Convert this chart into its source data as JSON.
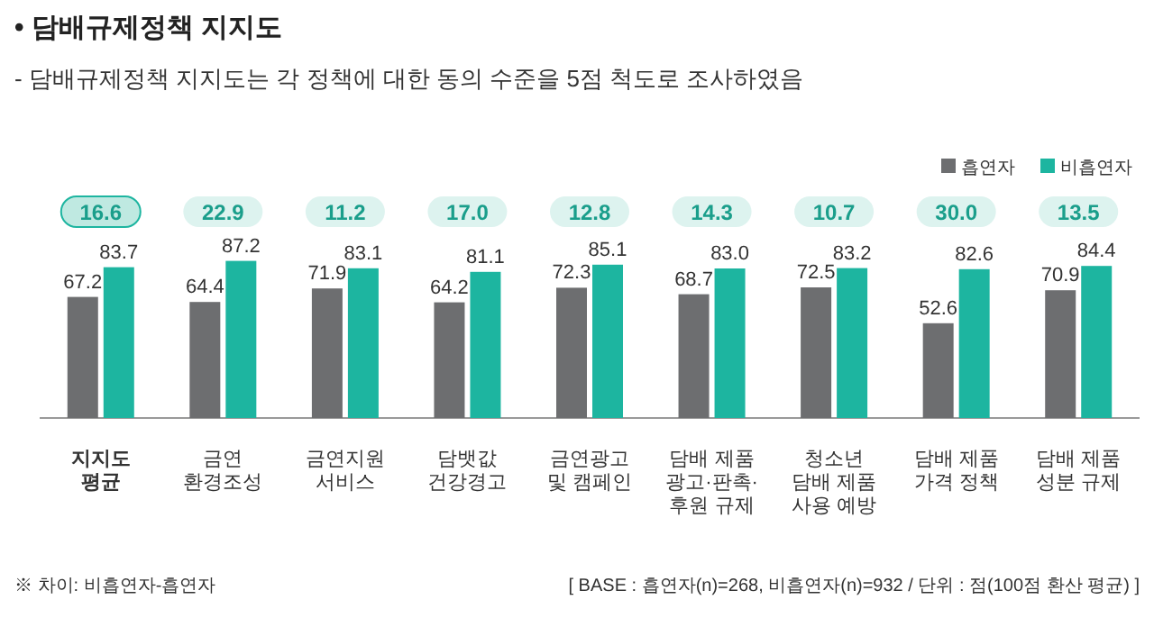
{
  "chart_data": {
    "type": "bar",
    "title": "• 담배규제정책 지지도",
    "subtitle": "- 담배규제정책 지지도는 각 정책에 대한 동의 수준을 5점 척도로 조사하였음",
    "categories": [
      "지지도\n평균",
      "금연\n환경조성",
      "금연지원\n서비스",
      "담뱃값\n건강경고",
      "금연광고\n및 캠페인",
      "담배 제품\n광고·판촉·\n후원 규제",
      "청소년\n담배 제품\n사용 예방",
      "담배 제품\n가격 정책",
      "담배 제품\n성분 규제"
    ],
    "series": [
      {
        "name": "흡연자",
        "color": "#6d6e70",
        "values": [
          67.2,
          64.4,
          71.9,
          64.2,
          72.3,
          68.7,
          72.5,
          52.6,
          70.9
        ],
        "value_labels": [
          "67.2",
          "64.4",
          "71.9",
          "64.2",
          "72.3",
          "68.7",
          "72.5",
          "52.6",
          "70.9"
        ]
      },
      {
        "name": "비흡연자",
        "color": "#1db5a0",
        "values": [
          83.7,
          87.2,
          83.1,
          81.1,
          85.1,
          83.0,
          83.2,
          82.6,
          84.4
        ],
        "value_labels": [
          "83.7",
          "87.2",
          "83.1",
          "81.1",
          "85.1",
          "83.0",
          "83.2",
          "82.6",
          "84.4"
        ]
      }
    ],
    "legend": "top right",
    "annotations": [
      "16.6",
      "22.9",
      "11.2",
      "17.0",
      "12.8",
      "14.3",
      "10.7",
      "30.0",
      "13.5",
      "※ 차이: 비흡연자-흡연자",
      "[ BASE : 흡연자(n)=268, 비흡연자(n)=932 / 단위 : 점(100점 환산 평균) ]"
    ]
  }
}
